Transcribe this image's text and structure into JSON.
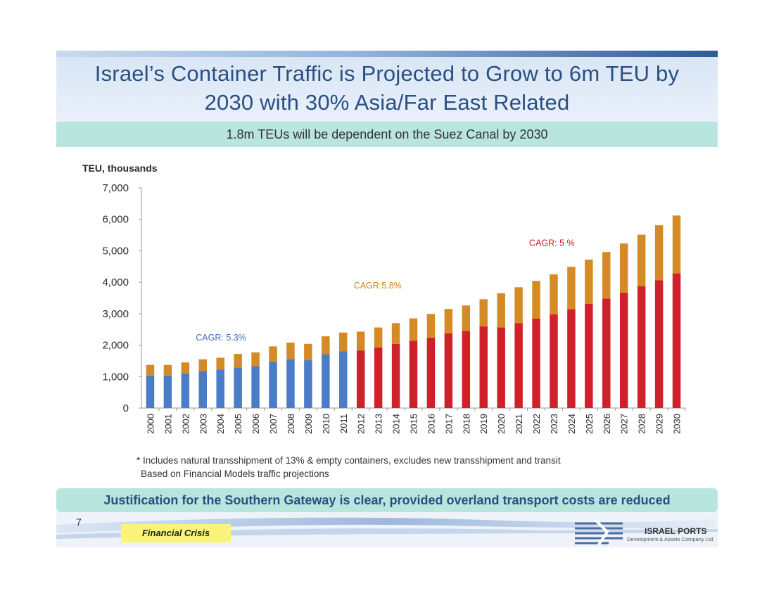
{
  "slide": {
    "title_line1": "Israel’s Container Traffic is Projected to Grow to 6m TEU by",
    "title_line2": "2030 with 30% Asia/Far East Related",
    "subtitle": "1.8m TEUs will be dependent on the Suez Canal by 2030",
    "footnote_line1": "* Includes natural transshipment of 13% & empty containers, excludes new transshipment and transit",
    "footnote_line2": "Based on  Financial Models traffic projections",
    "justification": "Justification for the Southern Gateway is clear, provided overland transport costs are reduced",
    "page_number": "7",
    "tag": "Financial Crisis",
    "logo_name": "ISRAEL PORTS",
    "logo_sub": "Development & Assets Company Ltd."
  },
  "colors": {
    "historical": "#4a7cc7",
    "projected": "#d0202a",
    "upper": "#d48a25",
    "cagr_historical": "#3f6fbf",
    "cagr_mid": "#c98a1d",
    "cagr_late": "#c8201f",
    "title": "#2a4f82"
  },
  "chart_data": {
    "type": "bar",
    "stacked": true,
    "ylabel": "TEU, thousands",
    "ylim": [
      0,
      7000
    ],
    "yticks": [
      "0",
      "1,000",
      "2,000",
      "3,000",
      "4,000",
      "5,000",
      "6,000",
      "7,000"
    ],
    "categories": [
      "2000",
      "2001",
      "2002",
      "2003",
      "2004",
      "2005",
      "2006",
      "2007",
      "2008",
      "2009",
      "2010",
      "2011",
      "2012",
      "2013",
      "2014",
      "2015",
      "2016",
      "2017",
      "2018",
      "2019",
      "2020",
      "2021",
      "2022",
      "2023",
      "2024",
      "2025",
      "2026",
      "2027",
      "2028",
      "2029",
      "2030"
    ],
    "historical_through": "2011",
    "series": [
      {
        "values": [
          1030,
          1030,
          1100,
          1180,
          1220,
          1290,
          1330,
          1480,
          1560,
          1520,
          1710,
          1800,
          1830,
          1930,
          2040,
          2140,
          2240,
          2370,
          2450,
          2600,
          2560,
          2700,
          2840,
          2980,
          3140,
          3310,
          3480,
          3670,
          3870,
          4060,
          4280
        ]
      },
      {
        "values": [
          340,
          340,
          350,
          370,
          380,
          430,
          440,
          480,
          520,
          520,
          570,
          600,
          600,
          630,
          660,
          710,
          750,
          780,
          810,
          860,
          1090,
          1140,
          1200,
          1270,
          1350,
          1410,
          1480,
          1560,
          1640,
          1750,
          1840
        ]
      }
    ],
    "annotations": [
      {
        "text": "CAGR: 5.3%",
        "category": "2003",
        "value": 2150,
        "color_key": "cagr_historical"
      },
      {
        "text": "CAGR:5.8%",
        "category": "2012",
        "value": 3800,
        "color_key": "cagr_mid"
      },
      {
        "text": "CAGR: 5 %",
        "category": "2022",
        "value": 5150,
        "color_key": "cagr_late"
      }
    ]
  }
}
